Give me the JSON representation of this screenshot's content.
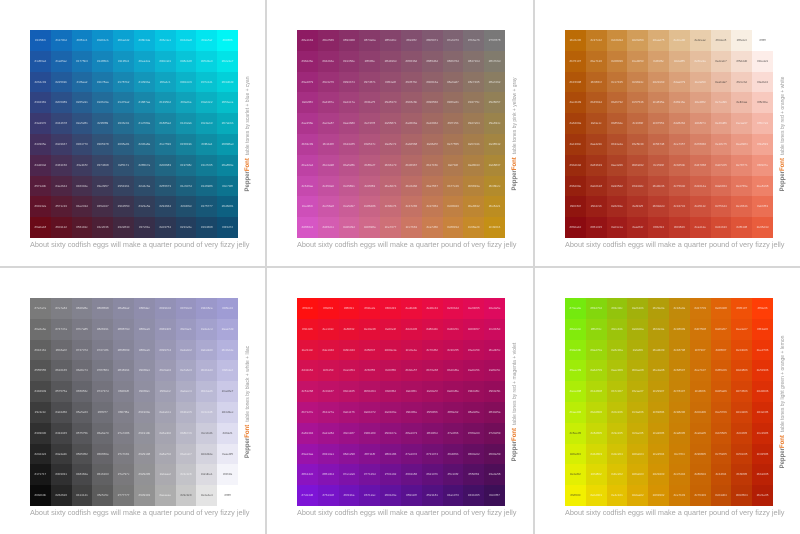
{
  "caption": "About sixty codfish eggs will make a quarter pound of very fizzy jelly",
  "brand": [
    "Pepper",
    "Font"
  ],
  "panels": [
    {
      "description": "table tones by scarlet + blue + cyan",
      "colors": {
        "tl": "#135fb6",
        "tr": "#00f6f6",
        "bl": "#6a0a18",
        "br": "#0f4d72"
      },
      "corner_empty": null,
      "tag": ""
    },
    {
      "description": "table tones by pink + yellow + gray",
      "colors": {
        "tl": "#8e1b63",
        "tr": "#797878",
        "bl": "#d656c4",
        "br": "#c49016"
      },
      "corner_empty": null,
      "tag": ""
    },
    {
      "description": "table tones by red + orange + white",
      "colors": {
        "tl": "#bc6c06",
        "tr": "#ffffff",
        "bl": "#8b0a10",
        "br": "#e95d3d"
      },
      "corner_empty": "top-right",
      "tag": "#ffffff"
    },
    {
      "description": "table tones by black + white + lilac",
      "colors": {
        "tl": "#7a7a7a",
        "tr": "#9f9cd4",
        "bl": "#0b0b0b",
        "br": "#ffffff"
      },
      "corner_empty": "bottom-right",
      "tag": "#ffffff"
    },
    {
      "description": "table tones by red + magenta + violet",
      "colors": {
        "tl": "#ff1010",
        "tr": "#de0a5e",
        "bl": "#7d14d6",
        "br": "#3c0f57"
      },
      "corner_empty": null,
      "tag": ""
    },
    {
      "description": "table tones by light green + orange + lemon",
      "colors": {
        "tl": "#74ea0e",
        "tr": "#ff3e06",
        "bl": "#f2f000",
        "br": "#b21e05"
      },
      "corner_empty": null,
      "tag": ""
    }
  ]
}
